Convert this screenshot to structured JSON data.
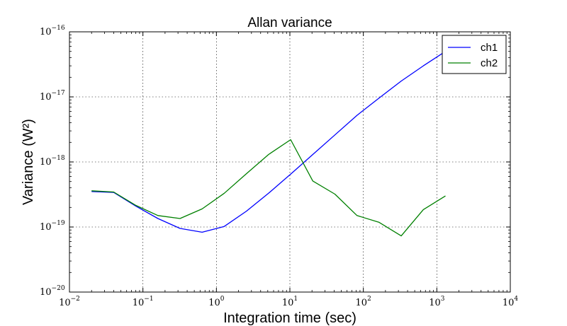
{
  "chart_data": {
    "type": "line",
    "title": "Allan variance",
    "xlabel": "Integration time (sec)",
    "ylabel": "Variance (W²)",
    "xscale": "log",
    "yscale": "log",
    "xlim": [
      0.01,
      10000
    ],
    "ylim": [
      1e-20,
      1e-16
    ],
    "grid": true,
    "legend_position": "top-right",
    "x_ticks": [
      {
        "base": "10",
        "exp": "−2"
      },
      {
        "base": "10",
        "exp": "−1"
      },
      {
        "base": "10",
        "exp": "0"
      },
      {
        "base": "10",
        "exp": "1"
      },
      {
        "base": "10",
        "exp": "2"
      },
      {
        "base": "10",
        "exp": "3"
      },
      {
        "base": "10",
        "exp": "4"
      }
    ],
    "y_ticks": [
      {
        "base": "10",
        "exp": "−20"
      },
      {
        "base": "10",
        "exp": "−19"
      },
      {
        "base": "10",
        "exp": "−18"
      },
      {
        "base": "10",
        "exp": "−17"
      },
      {
        "base": "10",
        "exp": "−16"
      }
    ],
    "x": [
      0.02,
      0.04,
      0.08,
      0.16,
      0.32,
      0.64,
      1.28,
      2.56,
      5.12,
      10.24,
      20.48,
      40.96,
      81.92,
      163.84,
      327.68,
      655.36,
      1310.72
    ],
    "series": [
      {
        "name": "ch1",
        "color": "#0000ff",
        "values": [
          3.5e-19,
          3.4e-19,
          2.1e-19,
          1.35e-19,
          9.5e-20,
          8.3e-20,
          1.02e-19,
          1.75e-19,
          3.3e-19,
          6.5e-19,
          1.3e-18,
          2.6e-18,
          5.2e-18,
          9.6e-18,
          1.75e-17,
          3e-17,
          5e-17
        ]
      },
      {
        "name": "ch2",
        "color": "#008000",
        "values": [
          3.6e-19,
          3.45e-19,
          2.15e-19,
          1.5e-19,
          1.35e-19,
          1.9e-19,
          3.3e-19,
          6.6e-19,
          1.3e-18,
          2.2e-18,
          5.1e-19,
          3.2e-19,
          1.5e-19,
          1.18e-19,
          7.3e-20,
          1.85e-19,
          3e-19
        ]
      }
    ]
  }
}
